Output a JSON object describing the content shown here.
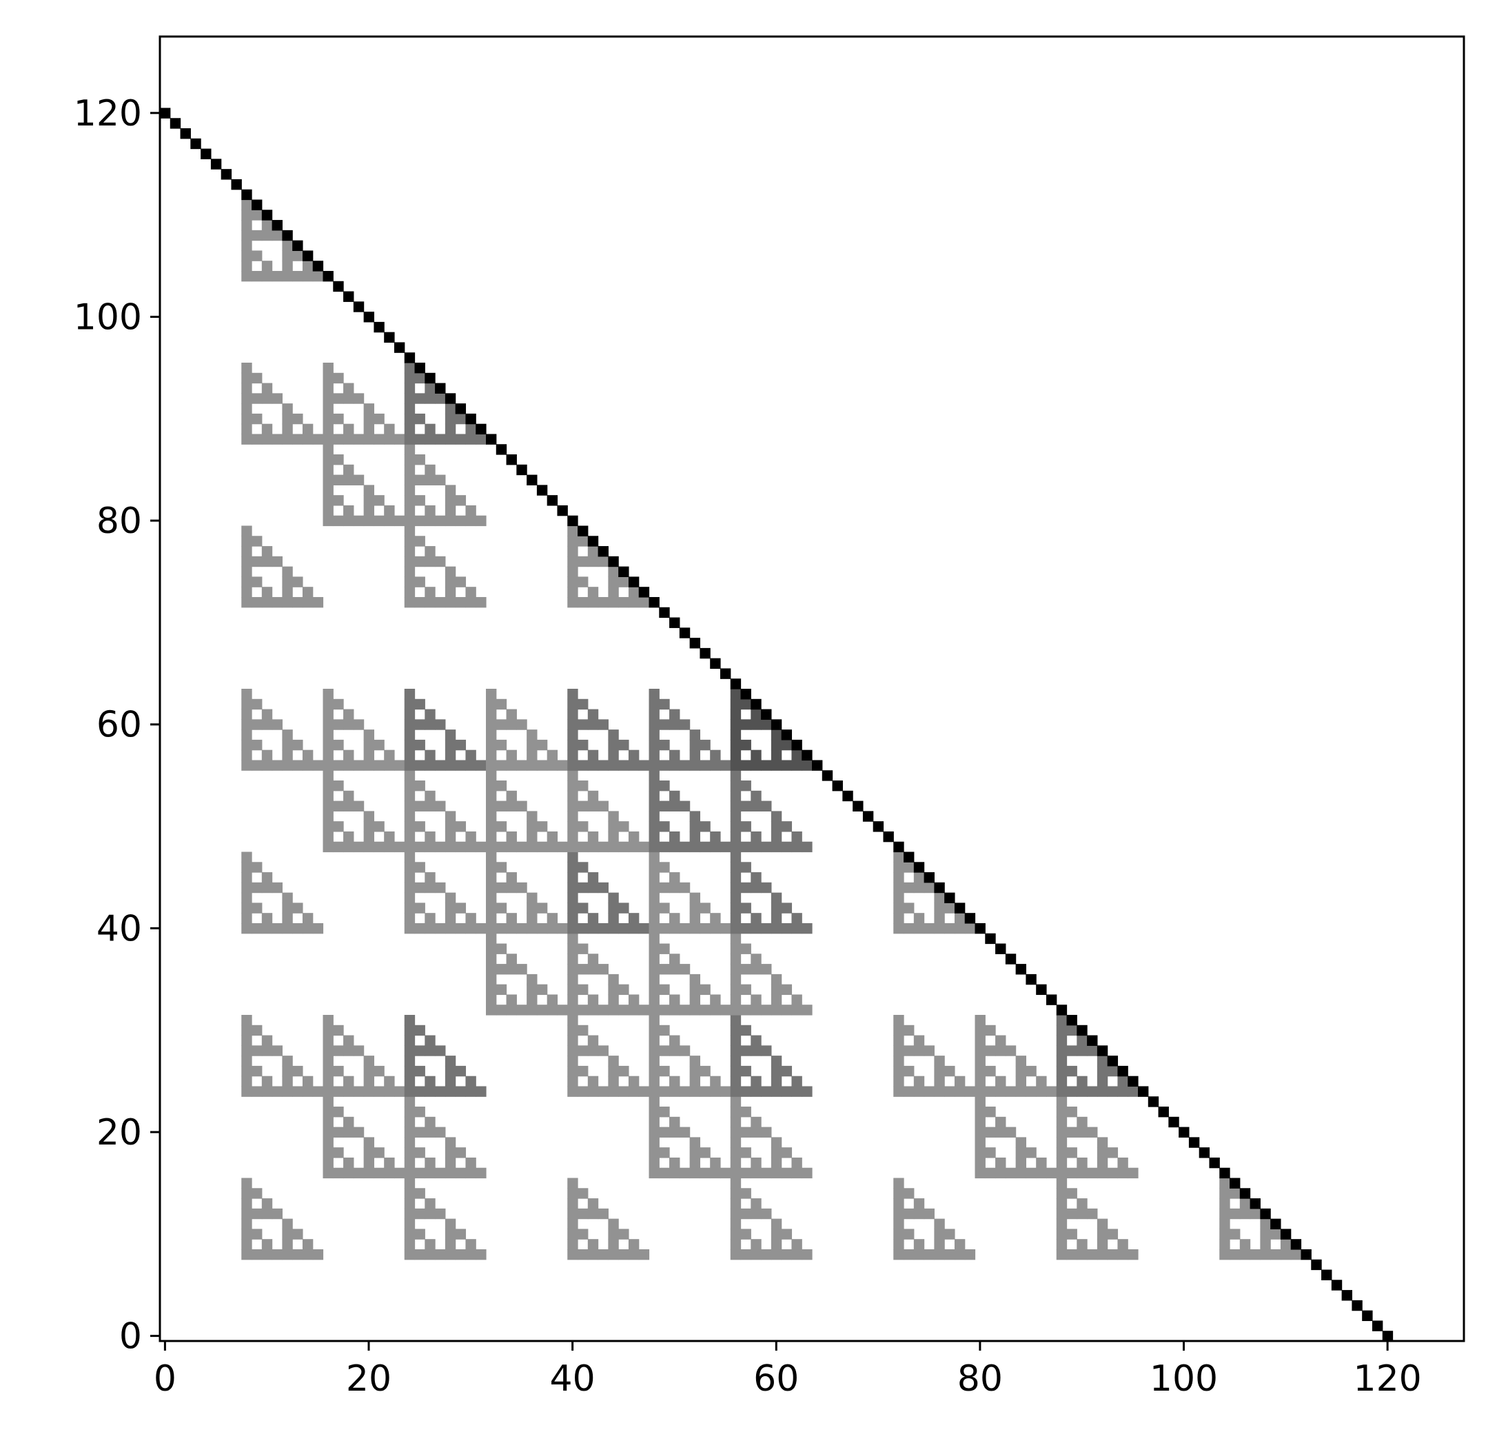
{
  "chart_data": {
    "type": "heatmap",
    "title": "",
    "xlabel": "",
    "ylabel": "",
    "xlim": [
      -0.5,
      127.5
    ],
    "ylim": [
      -0.5,
      127.5
    ],
    "origin": "lower",
    "grid": false,
    "legend": "none",
    "colormap": "gray_r",
    "xticks": [
      0,
      20,
      40,
      60,
      80,
      100,
      120
    ],
    "yticks": [
      0,
      20,
      40,
      60,
      80,
      100,
      120
    ],
    "xtick_labels": [
      "0",
      "20",
      "40",
      "60",
      "80",
      "100",
      "120"
    ],
    "ytick_labels": [
      "0",
      "20",
      "40",
      "60",
      "80",
      "100",
      "120"
    ],
    "levels": [
      0,
      1,
      2,
      3,
      4,
      5
    ],
    "level_colors": [
      "#ffffff",
      "#929292",
      "#747474",
      "#525252",
      "#222222",
      "#000000"
    ],
    "description_of_values": "Cell (x, y) has level 5 (black) on the diagonal x + y = 120; elsewhere for x + y < 120 the level equals the number of shared set bits of x and y among the bit weights 8, 16, 32 and 64, and is 0 (white) when a shared bit of weight 1, 2 or 4 exists or x + y > 120."
  }
}
